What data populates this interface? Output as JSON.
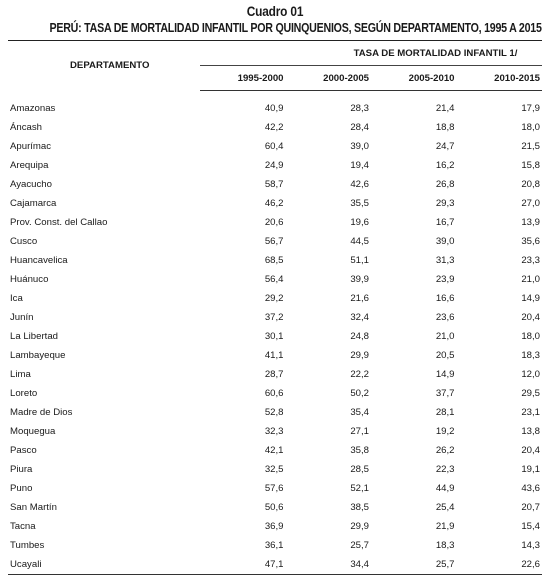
{
  "cuadro": "Cuadro 01",
  "title": "PERÚ: TASA DE MORTALIDAD INFANTIL POR QUINQUENIOS, SEGÚN DEPARTAMENTO, 1995 A 2015",
  "headers": {
    "departamento": "DEPARTAMENTO",
    "group": "TASA DE MORTALIDAD INFANTIL 1/",
    "periods": [
      "1995-2000",
      "2000-2005",
      "2005-2010",
      "2010-2015"
    ]
  },
  "rows": [
    {
      "name": "Amazonas",
      "values": [
        "40,9",
        "28,3",
        "21,4",
        "17,9"
      ]
    },
    {
      "name": "Áncash",
      "values": [
        "42,2",
        "28,4",
        "18,8",
        "18,0"
      ]
    },
    {
      "name": "Apurímac",
      "values": [
        "60,4",
        "39,0",
        "24,7",
        "21,5"
      ]
    },
    {
      "name": "Arequipa",
      "values": [
        "24,9",
        "19,4",
        "16,2",
        "15,8"
      ]
    },
    {
      "name": "Ayacucho",
      "values": [
        "58,7",
        "42,6",
        "26,8",
        "20,8"
      ]
    },
    {
      "name": "Cajamarca",
      "values": [
        "46,2",
        "35,5",
        "29,3",
        "27,0"
      ]
    },
    {
      "name": "Prov. Const. del Callao",
      "values": [
        "20,6",
        "19,6",
        "16,7",
        "13,9"
      ]
    },
    {
      "name": "Cusco",
      "values": [
        "56,7",
        "44,5",
        "39,0",
        "35,6"
      ]
    },
    {
      "name": "Huancavelica",
      "values": [
        "68,5",
        "51,1",
        "31,3",
        "23,3"
      ]
    },
    {
      "name": "Huánuco",
      "values": [
        "56,4",
        "39,9",
        "23,9",
        "21,0"
      ]
    },
    {
      "name": "Ica",
      "values": [
        "29,2",
        "21,6",
        "16,6",
        "14,9"
      ]
    },
    {
      "name": "Junín",
      "values": [
        "37,2",
        "32,4",
        "23,6",
        "20,4"
      ]
    },
    {
      "name": "La Libertad",
      "values": [
        "30,1",
        "24,8",
        "21,0",
        "18,0"
      ]
    },
    {
      "name": "Lambayeque",
      "values": [
        "41,1",
        "29,9",
        "20,5",
        "18,3"
      ]
    },
    {
      "name": "Lima",
      "values": [
        "28,7",
        "22,2",
        "14,9",
        "12,0"
      ]
    },
    {
      "name": "Loreto",
      "values": [
        "60,6",
        "50,2",
        "37,7",
        "29,5"
      ]
    },
    {
      "name": "Madre de Dios",
      "values": [
        "52,8",
        "35,4",
        "28,1",
        "23,1"
      ]
    },
    {
      "name": "Moquegua",
      "values": [
        "32,3",
        "27,1",
        "19,2",
        "13,8"
      ]
    },
    {
      "name": "Pasco",
      "values": [
        "42,1",
        "35,8",
        "26,2",
        "20,4"
      ]
    },
    {
      "name": "Piura",
      "values": [
        "32,5",
        "28,5",
        "22,3",
        "19,1"
      ]
    },
    {
      "name": "Puno",
      "values": [
        "57,6",
        "52,1",
        "44,9",
        "43,6"
      ]
    },
    {
      "name": "San Martín",
      "values": [
        "50,6",
        "38,5",
        "25,4",
        "20,7"
      ]
    },
    {
      "name": "Tacna",
      "values": [
        "36,9",
        "29,9",
        "21,9",
        "15,4"
      ]
    },
    {
      "name": "Tumbes",
      "values": [
        "36,1",
        "25,7",
        "18,3",
        "14,3"
      ]
    },
    {
      "name": "Ucayali",
      "values": [
        "47,1",
        "34,4",
        "25,7",
        "22,6"
      ]
    }
  ]
}
